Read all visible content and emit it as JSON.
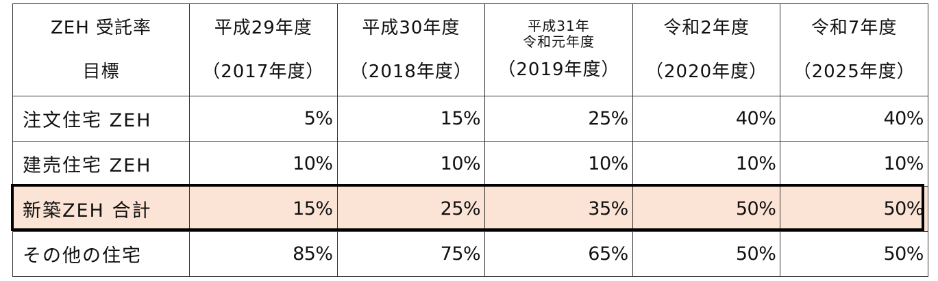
{
  "table": {
    "header_label_line1": "ZEH  受託率",
    "header_label_line2": "目標",
    "years": [
      {
        "line1": "平成29年度",
        "line2": "（2017年度）"
      },
      {
        "line1": "平成30年度",
        "line2": "（2018年度）"
      },
      {
        "line1a": "平成31年",
        "line1b": "令和元年度",
        "line2": "（2019年度）"
      },
      {
        "line1": "令和2年度",
        "line2": "（2020年度）"
      },
      {
        "line1": "令和7年度",
        "line2": "（2025年度）"
      }
    ],
    "rows": [
      {
        "label": "注文住宅  ZEH",
        "values": [
          "5%",
          "15%",
          "25%",
          "40%",
          "40%"
        ]
      },
      {
        "label": "建売住宅  ZEH",
        "values": [
          "10%",
          "10%",
          "10%",
          "10%",
          "10%"
        ]
      },
      {
        "label": "新築ZEH  合計",
        "values": [
          "15%",
          "25%",
          "35%",
          "50%",
          "50%"
        ]
      },
      {
        "label": "その他の住宅",
        "values": [
          "85%",
          "75%",
          "65%",
          "50%",
          "50%"
        ]
      }
    ],
    "highlight_color": "#fbe4d5",
    "highlight_border_color": "#000000"
  }
}
